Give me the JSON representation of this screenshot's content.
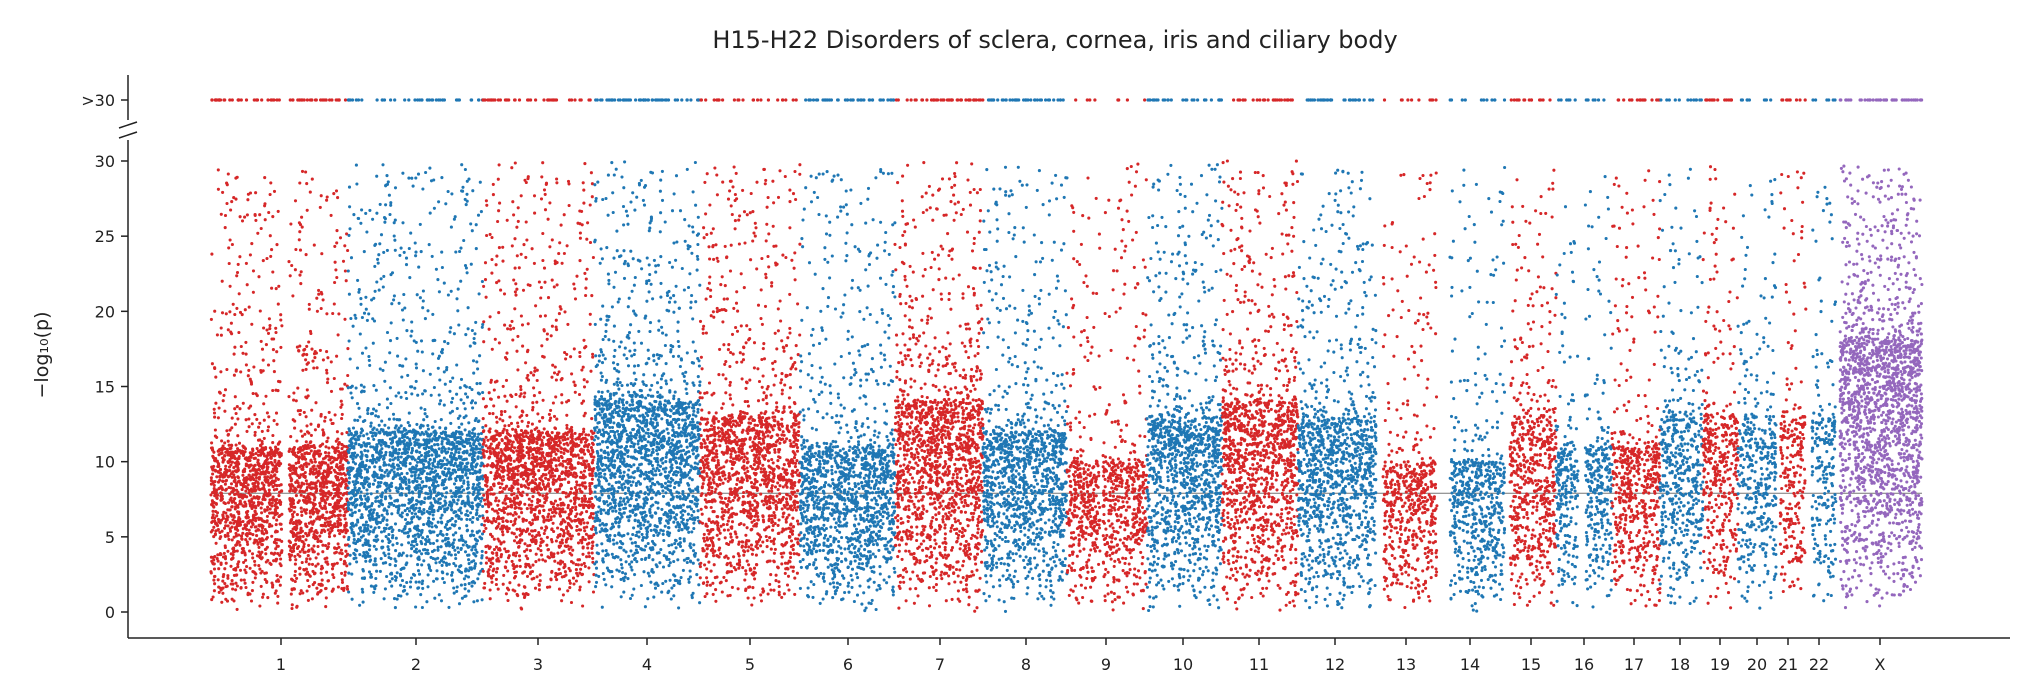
{
  "chart_data": {
    "type": "scatter",
    "title": "H15-H22 Disorders of sclera, cornea, iris and ciliary body",
    "ylabel": "−log₁₀(p)",
    "xlabel": "",
    "ylim": [
      0,
      30
    ],
    "y_ticks": [
      0,
      5,
      10,
      15,
      20,
      25,
      30
    ],
    "y_tick_labels": [
      "0",
      "5",
      "10",
      "15",
      "20",
      "25",
      "30"
    ],
    "y_break_label": ">30",
    "y_break_value": 30,
    "significance_threshold": 7.9,
    "grid": false,
    "legend": "none",
    "colors": {
      "red": "#d62728",
      "blue": "#1f77b4",
      "purple": "#9467bd",
      "threshold": "#555555",
      "axis": "#222222"
    },
    "categories": [
      "1",
      "2",
      "3",
      "4",
      "5",
      "6",
      "7",
      "8",
      "9",
      "10",
      "11",
      "12",
      "13",
      "14",
      "15",
      "16",
      "17",
      "18",
      "19",
      "20",
      "21",
      "22",
      "X"
    ],
    "chromosomes": [
      {
        "label": "1",
        "color": "red",
        "max_y": 29.6,
        "dense_top": 11,
        "density": 1.0,
        "overflow": 0.9
      },
      {
        "label": "2",
        "color": "blue",
        "max_y": 29.8,
        "dense_top": 12,
        "density": 0.95,
        "overflow": 0.55
      },
      {
        "label": "3",
        "color": "red",
        "max_y": 29.9,
        "dense_top": 12,
        "density": 0.95,
        "overflow": 0.7
      },
      {
        "label": "4",
        "color": "blue",
        "max_y": 30.0,
        "dense_top": 14,
        "density": 1.05,
        "overflow": 0.95
      },
      {
        "label": "5",
        "color": "red",
        "max_y": 29.8,
        "dense_top": 13,
        "density": 0.9,
        "overflow": 0.45
      },
      {
        "label": "6",
        "color": "blue",
        "max_y": 29.7,
        "dense_top": 11,
        "density": 0.85,
        "overflow": 0.75
      },
      {
        "label": "7",
        "color": "red",
        "max_y": 30.0,
        "dense_top": 14,
        "density": 1.0,
        "overflow": 0.9
      },
      {
        "label": "8",
        "color": "blue",
        "max_y": 29.8,
        "dense_top": 12,
        "density": 0.85,
        "overflow": 0.85
      },
      {
        "label": "9",
        "color": "red",
        "max_y": 29.8,
        "dense_top": 10,
        "density": 0.65,
        "overflow": 0.2
      },
      {
        "label": "10",
        "color": "blue",
        "max_y": 29.9,
        "dense_top": 13,
        "density": 0.9,
        "overflow": 0.7
      },
      {
        "label": "11",
        "color": "red",
        "max_y": 30.0,
        "dense_top": 14,
        "density": 0.95,
        "overflow": 0.65
      },
      {
        "label": "12",
        "color": "blue",
        "max_y": 29.5,
        "dense_top": 13,
        "density": 0.85,
        "overflow": 0.8
      },
      {
        "label": "13",
        "color": "red",
        "max_y": 29.6,
        "dense_top": 10,
        "density": 0.6,
        "overflow": 0.35
      },
      {
        "label": "14",
        "color": "blue",
        "max_y": 29.8,
        "dense_top": 10,
        "density": 0.6,
        "overflow": 0.35
      },
      {
        "label": "15",
        "color": "red",
        "max_y": 29.5,
        "dense_top": 13,
        "density": 0.75,
        "overflow": 0.55
      },
      {
        "label": "16",
        "color": "blue",
        "max_y": 29.5,
        "dense_top": 11,
        "density": 0.6,
        "overflow": 0.5
      },
      {
        "label": "17",
        "color": "red",
        "max_y": 29.4,
        "dense_top": 11,
        "density": 0.65,
        "overflow": 0.7
      },
      {
        "label": "18",
        "color": "blue",
        "max_y": 29.8,
        "dense_top": 13,
        "density": 0.65,
        "overflow": 0.5
      },
      {
        "label": "19",
        "color": "red",
        "max_y": 29.8,
        "dense_top": 13,
        "density": 0.65,
        "overflow": 0.8
      },
      {
        "label": "20",
        "color": "blue",
        "max_y": 29.8,
        "dense_top": 13,
        "density": 0.6,
        "overflow": 0.45
      },
      {
        "label": "21",
        "color": "red",
        "max_y": 29.8,
        "dense_top": 13,
        "density": 0.55,
        "overflow": 0.6
      },
      {
        "label": "22",
        "color": "blue",
        "max_y": 29.5,
        "dense_top": 13,
        "density": 0.55,
        "overflow": 0.45
      },
      {
        "label": "X",
        "color": "purple",
        "max_y": 30.0,
        "dense_top": 18,
        "density": 1.3,
        "overflow": 1.0
      }
    ]
  }
}
